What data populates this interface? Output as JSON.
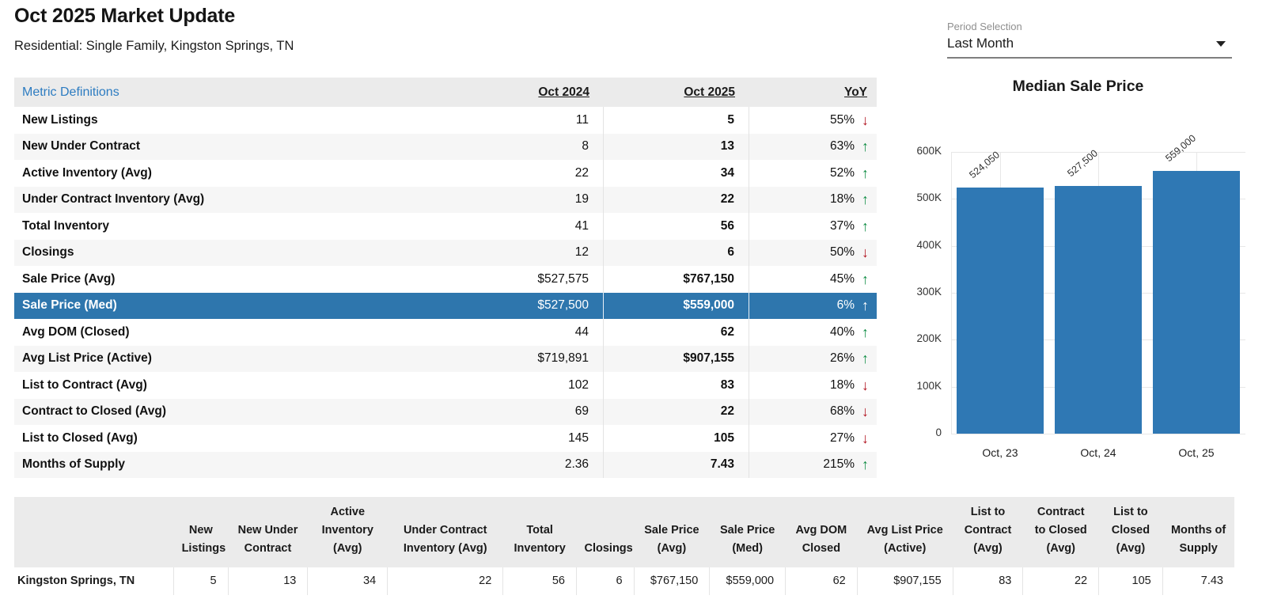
{
  "header": {
    "title": "Oct 2025 Market Update",
    "subtitle": "Residential: Single Family, Kingston Springs, TN"
  },
  "period_selector": {
    "label": "Period Selection",
    "value": "Last Month"
  },
  "metrics_table": {
    "definitions_link": "Metric Definitions",
    "columns": [
      "Oct 2024",
      "Oct 2025",
      "YoY"
    ],
    "rows": [
      {
        "metric": "New Listings",
        "oct2024": "11",
        "oct2025": "5",
        "yoy": "55%",
        "direction": "down",
        "highlighted": false
      },
      {
        "metric": "New Under Contract",
        "oct2024": "8",
        "oct2025": "13",
        "yoy": "63%",
        "direction": "up",
        "highlighted": false
      },
      {
        "metric": "Active Inventory (Avg)",
        "oct2024": "22",
        "oct2025": "34",
        "yoy": "52%",
        "direction": "up",
        "highlighted": false
      },
      {
        "metric": "Under Contract Inventory (Avg)",
        "oct2024": "19",
        "oct2025": "22",
        "yoy": "18%",
        "direction": "up",
        "highlighted": false
      },
      {
        "metric": "Total Inventory",
        "oct2024": "41",
        "oct2025": "56",
        "yoy": "37%",
        "direction": "up",
        "highlighted": false
      },
      {
        "metric": "Closings",
        "oct2024": "12",
        "oct2025": "6",
        "yoy": "50%",
        "direction": "down",
        "highlighted": false
      },
      {
        "metric": "Sale Price (Avg)",
        "oct2024": "$527,575",
        "oct2025": "$767,150",
        "yoy": "45%",
        "direction": "up",
        "highlighted": false
      },
      {
        "metric": "Sale Price (Med)",
        "oct2024": "$527,500",
        "oct2025": "$559,000",
        "yoy": "6%",
        "direction": "up",
        "highlighted": true
      },
      {
        "metric": "Avg DOM (Closed)",
        "oct2024": "44",
        "oct2025": "62",
        "yoy": "40%",
        "direction": "up",
        "highlighted": false
      },
      {
        "metric": "Avg List Price (Active)",
        "oct2024": "$719,891",
        "oct2025": "$907,155",
        "yoy": "26%",
        "direction": "up",
        "highlighted": false
      },
      {
        "metric": "List to Contract (Avg)",
        "oct2024": "102",
        "oct2025": "83",
        "yoy": "18%",
        "direction": "down",
        "highlighted": false
      },
      {
        "metric": "Contract to Closed (Avg)",
        "oct2024": "69",
        "oct2025": "22",
        "yoy": "68%",
        "direction": "down",
        "highlighted": false
      },
      {
        "metric": "List to Closed (Avg)",
        "oct2024": "145",
        "oct2025": "105",
        "yoy": "27%",
        "direction": "down",
        "highlighted": false
      },
      {
        "metric": "Months of Supply",
        "oct2024": "2.36",
        "oct2025": "7.43",
        "yoy": "215%",
        "direction": "up",
        "highlighted": false
      }
    ]
  },
  "chart_data": {
    "type": "bar",
    "title": "Median Sale Price",
    "categories": [
      "Oct, 23",
      "Oct, 24",
      "Oct, 25"
    ],
    "values": [
      524050,
      527500,
      559000
    ],
    "bar_value_labels": [
      "524,050",
      "527,500",
      "559,000"
    ],
    "xlabel": "",
    "ylabel": "",
    "ylim": [
      0,
      600000
    ],
    "ytick_values": [
      0,
      100000,
      200000,
      300000,
      400000,
      500000,
      600000
    ],
    "ytick_labels": [
      "0",
      "100K",
      "200K",
      "300K",
      "400K",
      "500K",
      "600K"
    ],
    "grid": true,
    "legend": false,
    "bar_color": "#2f78b4"
  },
  "summary_table": {
    "columns": [
      "",
      "New Listings",
      "New Under Contract",
      "Active Inventory (Avg)",
      "Under Contract Inventory (Avg)",
      "Total Inventory",
      "Closings",
      "Sale Price (Avg)",
      "Sale Price (Med)",
      "Avg DOM Closed",
      "Avg List Price (Active)",
      "List to Contract (Avg)",
      "Contract to Closed (Avg)",
      "List to Closed (Avg)",
      "Months of Supply"
    ],
    "rows": [
      {
        "area": "Kingston Springs, TN",
        "values": [
          "5",
          "13",
          "34",
          "22",
          "56",
          "6",
          "$767,150",
          "$559,000",
          "62",
          "$907,155",
          "83",
          "22",
          "105",
          "7.43"
        ]
      }
    ]
  },
  "icons": {
    "up_arrow": "↑",
    "down_arrow": "↓"
  },
  "colors": {
    "highlight_blue": "#2e76ad",
    "bar_blue": "#2f78b4",
    "link_blue": "#2d7cc1",
    "positive_green": "#0e8c43",
    "negative_red": "#b0111d",
    "header_gray": "#ebebeb",
    "stripe_gray": "#f6f6f6"
  }
}
